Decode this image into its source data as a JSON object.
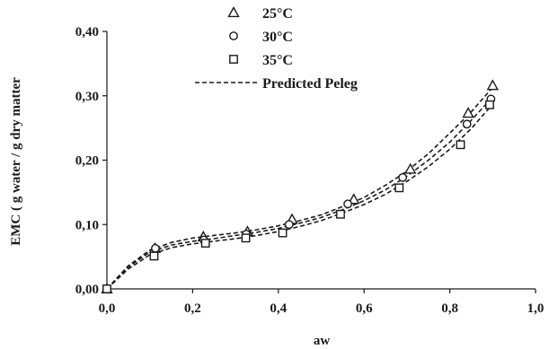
{
  "chart_data": {
    "type": "scatter",
    "xlabel": "aw",
    "ylabel": "EMC  ( g water / g  dry matter",
    "xlim": [
      0.0,
      1.0
    ],
    "ylim": [
      0.0,
      0.4
    ],
    "x_ticks": [
      "0,0",
      "0,2",
      "0,4",
      "0,6",
      "0,8",
      "1,0"
    ],
    "y_ticks": [
      "0,00",
      "0,10",
      "0,20",
      "0,30",
      "0,40"
    ],
    "grid": false,
    "legend_position": "top-center",
    "series": [
      {
        "name": "25°C",
        "marker": "triangle",
        "points": [
          [
            0.0,
            0.0
          ],
          [
            0.112,
            0.063
          ],
          [
            0.225,
            0.081
          ],
          [
            0.328,
            0.089
          ],
          [
            0.432,
            0.108
          ],
          [
            0.576,
            0.139
          ],
          [
            0.708,
            0.186
          ],
          [
            0.843,
            0.273
          ],
          [
            0.9,
            0.316
          ]
        ]
      },
      {
        "name": "30°C",
        "marker": "circle",
        "points": [
          [
            0.0,
            0.0
          ],
          [
            0.113,
            0.063
          ],
          [
            0.226,
            0.076
          ],
          [
            0.325,
            0.085
          ],
          [
            0.425,
            0.1
          ],
          [
            0.562,
            0.132
          ],
          [
            0.69,
            0.173
          ],
          [
            0.84,
            0.256
          ],
          [
            0.896,
            0.295
          ]
        ]
      },
      {
        "name": "35°C",
        "marker": "square",
        "points": [
          [
            0.0,
            0.0
          ],
          [
            0.11,
            0.051
          ],
          [
            0.23,
            0.071
          ],
          [
            0.324,
            0.079
          ],
          [
            0.41,
            0.087
          ],
          [
            0.545,
            0.116
          ],
          [
            0.682,
            0.157
          ],
          [
            0.825,
            0.224
          ],
          [
            0.893,
            0.286
          ]
        ]
      }
    ],
    "model_series": {
      "name": "Predicted Peleg",
      "style": "dashed",
      "curves": [
        {
          "for": "25°C",
          "points": [
            [
              0.0,
              0.0
            ],
            [
              0.05,
              0.036
            ],
            [
              0.1,
              0.06
            ],
            [
              0.15,
              0.072
            ],
            [
              0.2,
              0.079
            ],
            [
              0.25,
              0.083
            ],
            [
              0.3,
              0.087
            ],
            [
              0.35,
              0.092
            ],
            [
              0.4,
              0.098
            ],
            [
              0.45,
              0.106
            ],
            [
              0.5,
              0.115
            ],
            [
              0.55,
              0.128
            ],
            [
              0.6,
              0.142
            ],
            [
              0.65,
              0.161
            ],
            [
              0.7,
              0.183
            ],
            [
              0.75,
              0.21
            ],
            [
              0.8,
              0.242
            ],
            [
              0.85,
              0.275
            ],
            [
              0.9,
              0.313
            ]
          ]
        },
        {
          "for": "30°C",
          "points": [
            [
              0.0,
              0.0
            ],
            [
              0.05,
              0.034
            ],
            [
              0.1,
              0.057
            ],
            [
              0.15,
              0.068
            ],
            [
              0.2,
              0.074
            ],
            [
              0.25,
              0.078
            ],
            [
              0.3,
              0.083
            ],
            [
              0.35,
              0.088
            ],
            [
              0.4,
              0.094
            ],
            [
              0.45,
              0.102
            ],
            [
              0.5,
              0.111
            ],
            [
              0.55,
              0.123
            ],
            [
              0.6,
              0.137
            ],
            [
              0.65,
              0.154
            ],
            [
              0.7,
              0.175
            ],
            [
              0.75,
              0.2
            ],
            [
              0.8,
              0.228
            ],
            [
              0.85,
              0.262
            ],
            [
              0.9,
              0.298
            ]
          ]
        },
        {
          "for": "35°C",
          "points": [
            [
              0.0,
              0.0
            ],
            [
              0.05,
              0.031
            ],
            [
              0.1,
              0.053
            ],
            [
              0.15,
              0.064
            ],
            [
              0.2,
              0.07
            ],
            [
              0.25,
              0.074
            ],
            [
              0.3,
              0.078
            ],
            [
              0.35,
              0.083
            ],
            [
              0.4,
              0.089
            ],
            [
              0.45,
              0.097
            ],
            [
              0.5,
              0.106
            ],
            [
              0.55,
              0.118
            ],
            [
              0.6,
              0.131
            ],
            [
              0.65,
              0.147
            ],
            [
              0.7,
              0.167
            ],
            [
              0.75,
              0.19
            ],
            [
              0.8,
              0.217
            ],
            [
              0.85,
              0.249
            ],
            [
              0.9,
              0.287
            ]
          ]
        }
      ]
    },
    "colors": {
      "ink": "#1a1a1a",
      "background": "#ffffff"
    }
  }
}
